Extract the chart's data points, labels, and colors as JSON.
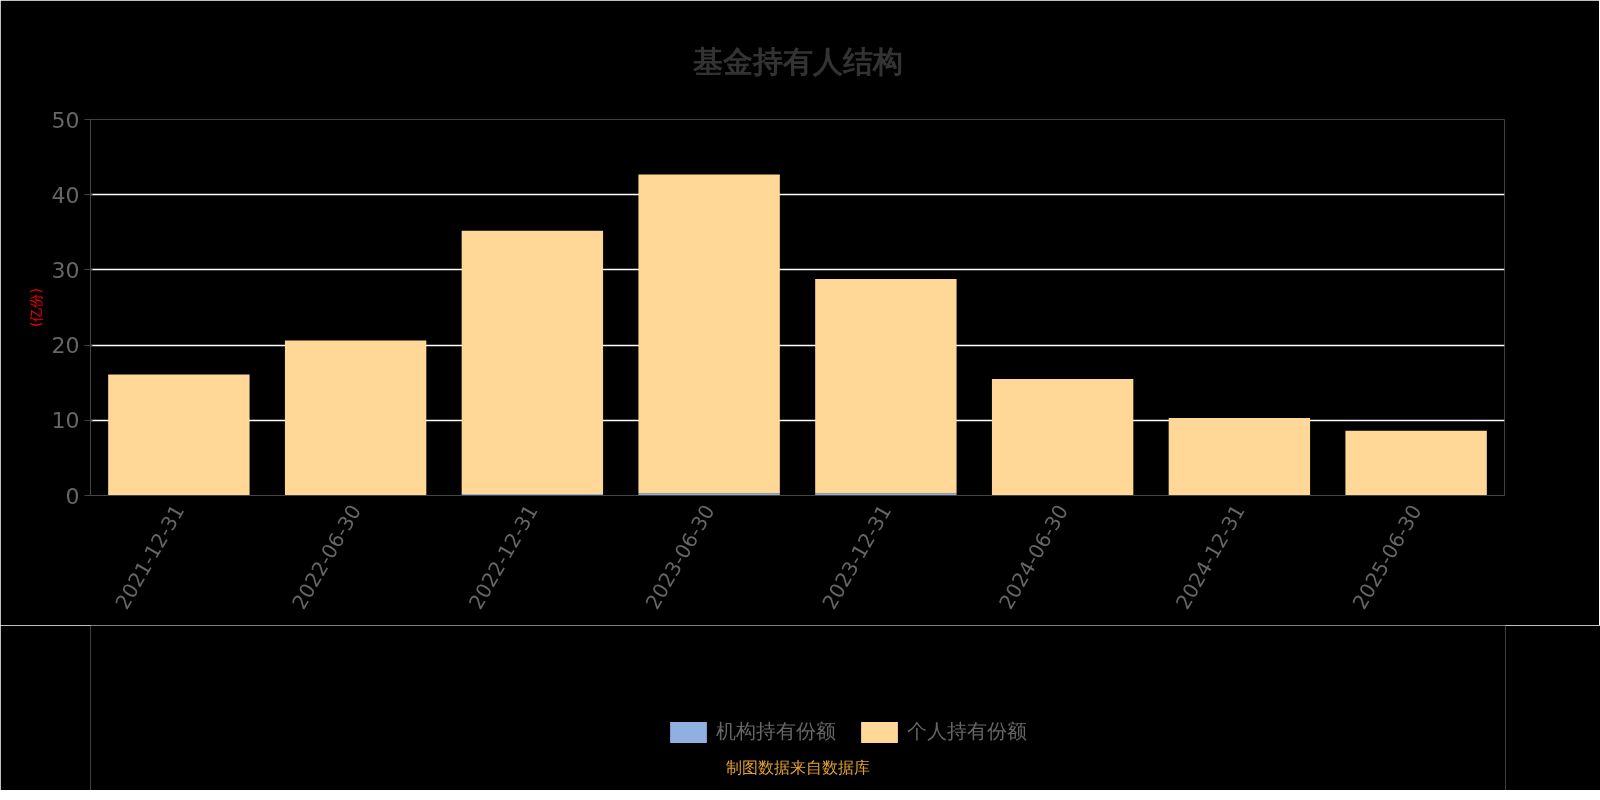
{
  "chart_data": {
    "type": "bar",
    "title": "基金持有人结构",
    "ylabel": "(亿份)",
    "categories": [
      "2021-12-31",
      "2022-06-30",
      "2022-12-31",
      "2023-06-30",
      "2023-12-31",
      "2024-06-30",
      "2024-12-31",
      "2025-06-30"
    ],
    "stacked": true,
    "series": [
      {
        "name": "机构持有份额",
        "color": "#8fb0e0",
        "values": [
          null,
          null,
          0.2,
          0.3,
          0.3,
          null,
          null,
          null
        ]
      },
      {
        "name": "个人持有份额",
        "color": "#ffd898",
        "values": [
          16.1,
          20.6,
          35.0,
          42.4,
          28.5,
          15.5,
          10.3,
          8.6
        ]
      }
    ],
    "ylim": [
      0,
      50
    ],
    "yticks": [
      0,
      10,
      20,
      30,
      40,
      50
    ],
    "grid": "y",
    "legend": "bottom",
    "annotations": [
      "制图数据来自数据库"
    ]
  }
}
